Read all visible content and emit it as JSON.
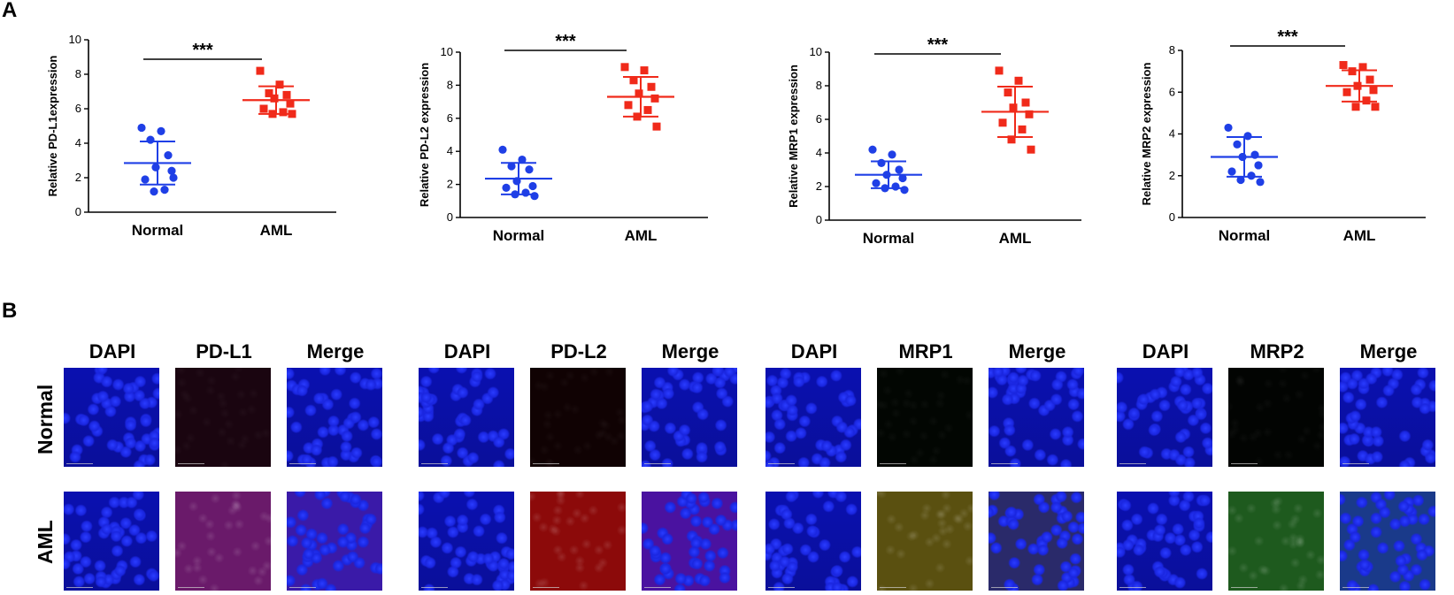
{
  "panel_labels": {
    "a": "A",
    "b": "B"
  },
  "chart_data": [
    {
      "type": "scatter",
      "ylabel": "Relative PD-L1expression",
      "categories": [
        "Normal",
        "AML"
      ],
      "ylim": [
        0,
        10
      ],
      "yticks": [
        0,
        2,
        4,
        6,
        8,
        10
      ],
      "significance": "***",
      "series": [
        {
          "name": "Normal",
          "color": "#1f3fe6",
          "marker": "circle",
          "values": [
            4.9,
            4.7,
            4.2,
            3.3,
            2.6,
            2.4,
            1.9,
            1.3,
            1.2,
            2.0
          ],
          "mean": 2.85,
          "sd": 1.25
        },
        {
          "name": "AML",
          "color": "#f02a1a",
          "marker": "square",
          "values": [
            8.2,
            7.4,
            6.9,
            6.8,
            6.6,
            6.3,
            6.0,
            5.8,
            5.7,
            5.7
          ],
          "mean": 6.5,
          "sd": 0.8
        }
      ]
    },
    {
      "type": "scatter",
      "ylabel": "Relative PD-L2 expression",
      "categories": [
        "Normal",
        "AML"
      ],
      "ylim": [
        0,
        10
      ],
      "yticks": [
        0,
        2,
        4,
        6,
        8,
        10
      ],
      "significance": "***",
      "series": [
        {
          "name": "Normal",
          "color": "#1f3fe6",
          "marker": "circle",
          "values": [
            4.1,
            3.5,
            3.1,
            2.9,
            2.2,
            1.9,
            1.8,
            1.5,
            1.4,
            1.3
          ],
          "mean": 2.35,
          "sd": 0.95
        },
        {
          "name": "AML",
          "color": "#f02a1a",
          "marker": "square",
          "values": [
            9.1,
            8.9,
            8.3,
            7.9,
            7.5,
            7.2,
            6.8,
            6.5,
            6.1,
            5.5
          ],
          "mean": 7.3,
          "sd": 1.2
        }
      ]
    },
    {
      "type": "scatter",
      "ylabel": "Relative MRP1 expression",
      "categories": [
        "Normal",
        "AML"
      ],
      "ylim": [
        0,
        10
      ],
      "yticks": [
        0,
        2,
        4,
        6,
        8,
        10
      ],
      "significance": "***",
      "series": [
        {
          "name": "Normal",
          "color": "#1f3fe6",
          "marker": "circle",
          "values": [
            4.2,
            3.9,
            3.4,
            3.0,
            2.7,
            2.5,
            2.2,
            2.0,
            1.9,
            1.8
          ],
          "mean": 2.7,
          "sd": 0.8
        },
        {
          "name": "AML",
          "color": "#f02a1a",
          "marker": "square",
          "values": [
            8.9,
            8.3,
            7.6,
            7.0,
            6.7,
            6.3,
            5.8,
            5.4,
            4.8,
            4.2
          ],
          "mean": 6.45,
          "sd": 1.5
        }
      ]
    },
    {
      "type": "scatter",
      "ylabel": "Relative MRP2 expression",
      "categories": [
        "Normal",
        "AML"
      ],
      "ylim": [
        0,
        8
      ],
      "yticks": [
        0,
        2,
        4,
        6,
        8
      ],
      "significance": "***",
      "series": [
        {
          "name": "Normal",
          "color": "#1f3fe6",
          "marker": "circle",
          "values": [
            4.3,
            3.9,
            3.5,
            3.0,
            2.9,
            2.5,
            2.2,
            2.0,
            1.8,
            1.7
          ],
          "mean": 2.9,
          "sd": 0.95
        },
        {
          "name": "AML",
          "color": "#f02a1a",
          "marker": "square",
          "values": [
            7.3,
            7.2,
            7.0,
            6.6,
            6.3,
            6.1,
            6.0,
            5.6,
            5.3,
            5.3
          ],
          "mean": 6.3,
          "sd": 0.75
        }
      ]
    }
  ],
  "immunofluorescence": {
    "row_labels": [
      "Normal",
      "AML"
    ],
    "groups": [
      {
        "headers": [
          "DAPI",
          "PD-L1",
          "Merge"
        ],
        "tints": {
          "normal": [
            "#0b12c8",
            "#1a0510",
            "#0b12c8"
          ],
          "aml": [
            "#0b12c8",
            "#6a1a6a",
            "#3a1aa8"
          ]
        }
      },
      {
        "headers": [
          "DAPI",
          "PD-L2",
          "Merge"
        ],
        "tints": {
          "normal": [
            "#0b12c8",
            "#100203",
            "#0b12c8"
          ],
          "aml": [
            "#0b12c8",
            "#8c0a0a",
            "#4a12a0"
          ]
        }
      },
      {
        "headers": [
          "DAPI",
          "MRP1",
          "Merge"
        ],
        "tints": {
          "normal": [
            "#0b12c8",
            "#020602",
            "#0b12c8"
          ],
          "aml": [
            "#0b12c8",
            "#5a5010",
            "#2a2a6a"
          ]
        }
      },
      {
        "headers": [
          "DAPI",
          "MRP2",
          "Merge"
        ],
        "tints": {
          "normal": [
            "#0b12c8",
            "#020402",
            "#0b12c8"
          ],
          "aml": [
            "#0b12c8",
            "#1e5a1e",
            "#1a3a8a"
          ]
        }
      }
    ]
  }
}
